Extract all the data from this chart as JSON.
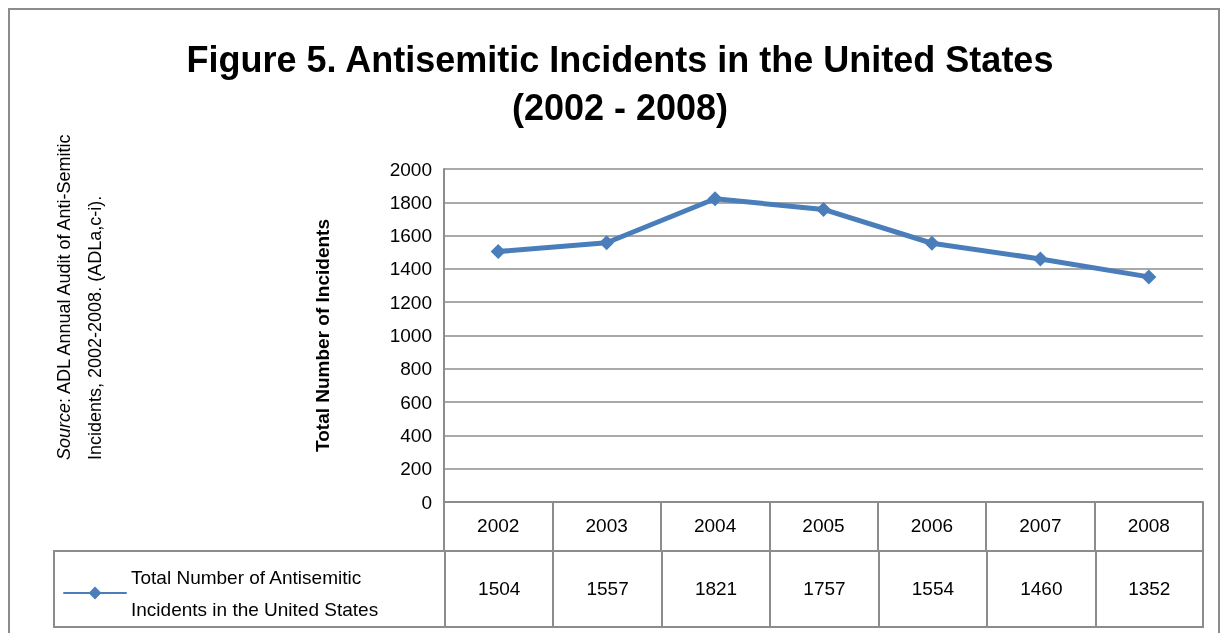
{
  "chart_data": {
    "type": "line",
    "title": "Figure 5.  Antisemitic Incidents in the United States (2002 - 2008)",
    "ylabel": "Total Number of Incidents",
    "annotations": [
      "Source: ADL Annual Audit of Anti-Semitic Incidents, 2002-2008. (ADLa,c-i)."
    ],
    "categories": [
      "2002",
      "2003",
      "2004",
      "2005",
      "2006",
      "2007",
      "2008"
    ],
    "series": [
      {
        "name": "Total Number of Antisemitic Incidents in the United States",
        "color": "#4a7ebb",
        "values": [
          1504,
          1557,
          1821,
          1757,
          1554,
          1460,
          1352
        ]
      }
    ],
    "ylim": [
      0,
      2000
    ],
    "yticks": [
      0,
      200,
      400,
      600,
      800,
      1000,
      1200,
      1400,
      1600,
      1800,
      2000
    ],
    "grid": "y",
    "legend": "bottom left",
    "marker": "diamond",
    "line_style": "solid",
    "data_labels": true
  }
}
